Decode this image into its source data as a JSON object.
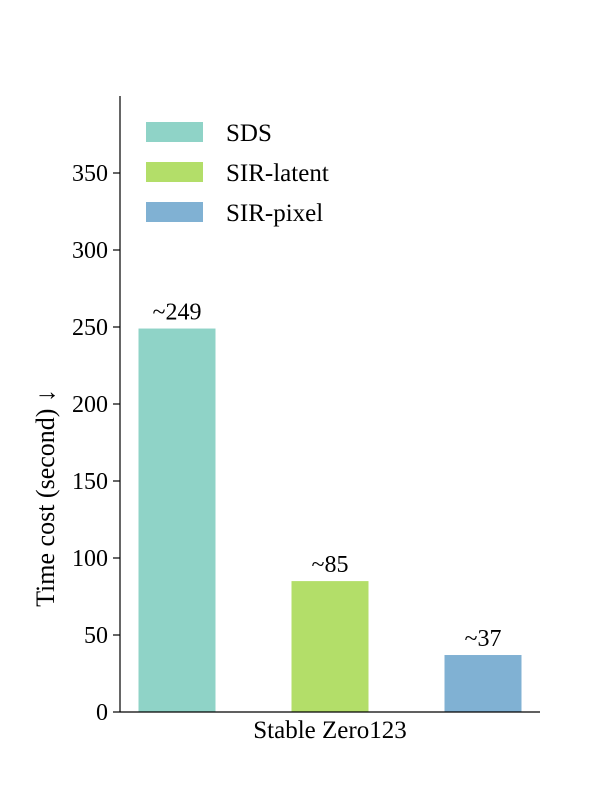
{
  "chart_data": {
    "type": "bar",
    "categories": [
      "Stable Zero123"
    ],
    "series": [
      {
        "name": "SDS",
        "values": [
          249
        ],
        "label": "~249",
        "color": "#8fd3c7"
      },
      {
        "name": "SIR-latent",
        "values": [
          85
        ],
        "label": "~85",
        "color": "#b3de69"
      },
      {
        "name": "SIR-pixel",
        "values": [
          37
        ],
        "label": "~37",
        "color": "#80b1d3"
      }
    ],
    "title": "",
    "xlabel": "",
    "ylabel": "Time cost (second) ↓",
    "ylim": [
      0,
      400
    ],
    "yticks": [
      0,
      50,
      100,
      150,
      200,
      250,
      300,
      350
    ],
    "legend": "top-left",
    "grid": false
  }
}
